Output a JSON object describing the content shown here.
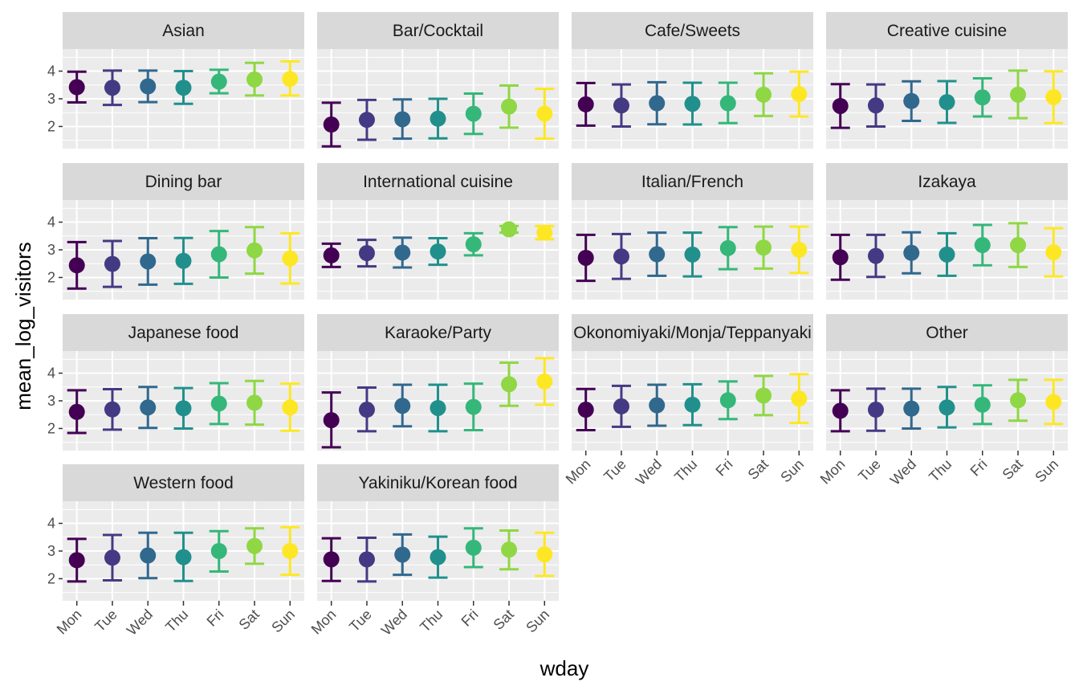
{
  "chart_data": {
    "type": "scatter",
    "subtype": "point-with-errorbars, faceted",
    "xlabel": "wday",
    "ylabel": "mean_log_visitors",
    "categories": [
      "Mon",
      "Tue",
      "Wed",
      "Thu",
      "Fri",
      "Sat",
      "Sun"
    ],
    "yticks": [
      2,
      3,
      4
    ],
    "ylim": [
      1.2,
      4.8
    ],
    "grid": true,
    "legend": "none",
    "colors": [
      "#440154",
      "#443a83",
      "#31688e",
      "#21908c",
      "#35b779",
      "#8fd744",
      "#fde725"
    ],
    "facets": [
      {
        "name": "Asian",
        "mean": [
          3.42,
          3.4,
          3.45,
          3.4,
          3.62,
          3.7,
          3.72
        ],
        "lower": [
          2.87,
          2.78,
          2.88,
          2.82,
          3.2,
          3.12,
          3.12
        ],
        "upper": [
          3.98,
          4.02,
          4.02,
          4.0,
          4.05,
          4.3,
          4.35
        ]
      },
      {
        "name": "Bar/Cocktail",
        "mean": [
          2.07,
          2.24,
          2.26,
          2.28,
          2.46,
          2.72,
          2.46
        ],
        "lower": [
          1.28,
          1.52,
          1.56,
          1.57,
          1.73,
          1.96,
          1.56
        ],
        "upper": [
          2.86,
          2.96,
          2.98,
          3.0,
          3.19,
          3.48,
          3.36
        ]
      },
      {
        "name": "Cafe/Sweets",
        "mean": [
          2.8,
          2.76,
          2.84,
          2.82,
          2.84,
          3.15,
          3.17
        ],
        "lower": [
          2.03,
          2.0,
          2.08,
          2.07,
          2.12,
          2.38,
          2.36
        ],
        "upper": [
          3.57,
          3.52,
          3.6,
          3.58,
          3.58,
          3.92,
          3.98
        ]
      },
      {
        "name": "Creative cuisine",
        "mean": [
          2.74,
          2.76,
          2.92,
          2.88,
          3.05,
          3.15,
          3.06
        ],
        "lower": [
          1.95,
          2.0,
          2.2,
          2.13,
          2.36,
          2.3,
          2.12
        ],
        "upper": [
          3.53,
          3.52,
          3.63,
          3.64,
          3.74,
          4.02,
          3.99
        ]
      },
      {
        "name": "Dining bar",
        "mean": [
          2.44,
          2.49,
          2.58,
          2.6,
          2.84,
          2.98,
          2.69
        ],
        "lower": [
          1.6,
          1.66,
          1.74,
          1.77,
          2.0,
          2.14,
          1.78
        ],
        "upper": [
          3.28,
          3.32,
          3.42,
          3.43,
          3.68,
          3.82,
          3.6
        ]
      },
      {
        "name": "International cuisine",
        "mean": [
          2.8,
          2.88,
          2.9,
          2.94,
          3.2,
          3.74,
          3.62
        ],
        "lower": [
          2.38,
          2.4,
          2.36,
          2.46,
          2.8,
          3.62,
          3.38
        ],
        "upper": [
          3.22,
          3.36,
          3.44,
          3.42,
          3.6,
          3.86,
          3.86
        ]
      },
      {
        "name": "Italian/French",
        "mean": [
          2.71,
          2.76,
          2.84,
          2.83,
          3.06,
          3.08,
          3.0
        ],
        "lower": [
          1.88,
          1.95,
          2.06,
          2.04,
          2.3,
          2.32,
          2.16
        ],
        "upper": [
          3.54,
          3.57,
          3.62,
          3.62,
          3.82,
          3.84,
          3.84
        ]
      },
      {
        "name": "Izakaya",
        "mean": [
          2.73,
          2.78,
          2.89,
          2.83,
          3.17,
          3.17,
          2.91
        ],
        "lower": [
          1.92,
          2.02,
          2.15,
          2.06,
          2.44,
          2.38,
          2.04
        ],
        "upper": [
          3.54,
          3.54,
          3.63,
          3.6,
          3.9,
          3.96,
          3.78
        ]
      },
      {
        "name": "Japanese food",
        "mean": [
          2.6,
          2.69,
          2.76,
          2.73,
          2.9,
          2.93,
          2.76
        ],
        "lower": [
          1.84,
          1.96,
          2.02,
          2.0,
          2.16,
          2.14,
          1.92
        ],
        "upper": [
          3.38,
          3.42,
          3.5,
          3.46,
          3.64,
          3.72,
          3.62
        ]
      },
      {
        "name": "Karaoke/Party",
        "mean": [
          2.3,
          2.68,
          2.82,
          2.74,
          2.78,
          3.6,
          3.7
        ],
        "lower": [
          1.32,
          1.9,
          2.08,
          1.9,
          1.94,
          2.82,
          2.86
        ],
        "upper": [
          3.3,
          3.48,
          3.58,
          3.58,
          3.62,
          4.38,
          4.54
        ]
      },
      {
        "name": "Okonomiyaki/Monja/Teppanyaki",
        "mean": [
          2.68,
          2.8,
          2.84,
          2.86,
          3.02,
          3.19,
          3.08
        ],
        "lower": [
          1.94,
          2.06,
          2.1,
          2.12,
          2.34,
          2.48,
          2.2
        ],
        "upper": [
          3.43,
          3.54,
          3.58,
          3.6,
          3.7,
          3.9,
          3.96
        ]
      },
      {
        "name": "Other",
        "mean": [
          2.64,
          2.68,
          2.72,
          2.76,
          2.86,
          3.02,
          2.96
        ],
        "lower": [
          1.9,
          1.92,
          2.0,
          2.04,
          2.16,
          2.28,
          2.16
        ],
        "upper": [
          3.38,
          3.44,
          3.44,
          3.5,
          3.56,
          3.76,
          3.76
        ]
      },
      {
        "name": "Western food",
        "mean": [
          2.67,
          2.76,
          2.84,
          2.78,
          3.0,
          3.18,
          3.0
        ],
        "lower": [
          1.9,
          1.94,
          2.02,
          1.92,
          2.26,
          2.54,
          2.14
        ],
        "upper": [
          3.44,
          3.58,
          3.66,
          3.66,
          3.72,
          3.82,
          3.86
        ]
      },
      {
        "name": "Yakiniku/Korean food",
        "mean": [
          2.7,
          2.7,
          2.87,
          2.78,
          3.12,
          3.05,
          2.88
        ],
        "lower": [
          1.92,
          1.9,
          2.14,
          2.04,
          2.42,
          2.34,
          2.1
        ],
        "upper": [
          3.46,
          3.48,
          3.6,
          3.52,
          3.82,
          3.74,
          3.66
        ]
      }
    ]
  }
}
